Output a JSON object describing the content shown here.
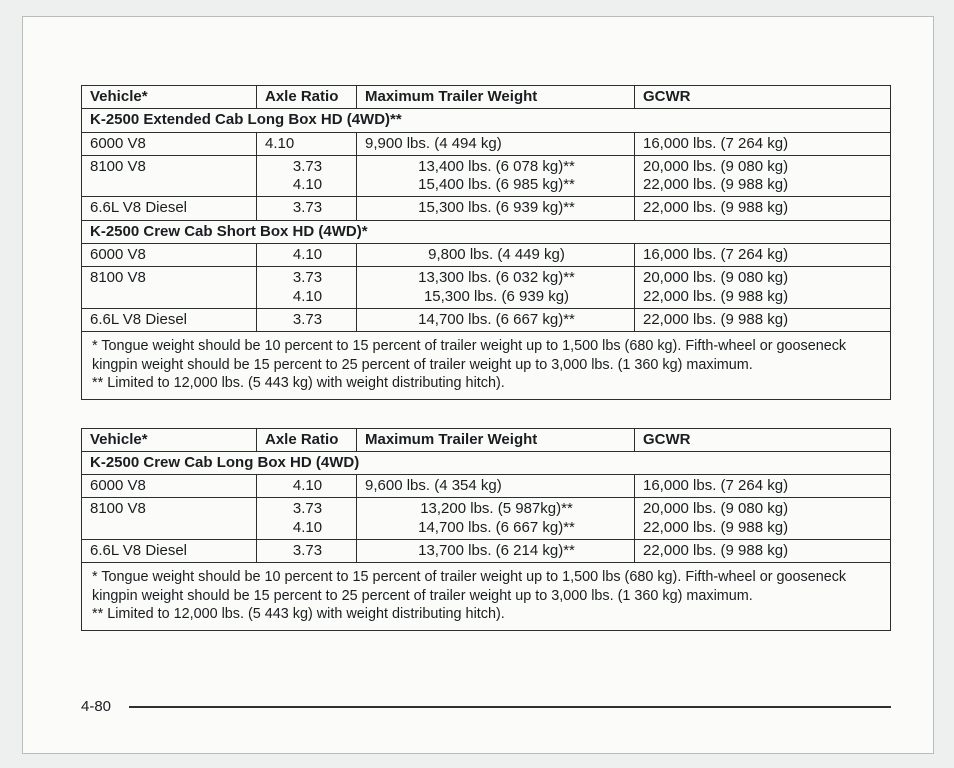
{
  "page_number": "4-80",
  "columns": [
    "Vehicle*",
    "Axle Ratio",
    "Maximum Trailer Weight",
    "GCWR"
  ],
  "footnote_a": "* Tongue weight should be 10 percent to 15 percent of trailer weight up to 1,500 lbs (680 kg). Fifth-wheel or gooseneck kingpin weight should be 15 percent to 25 percent of trailer weight up to 3,000 lbs. (1 360 kg) maximum.",
  "footnote_b": "** Limited to 12,000 lbs. (5 443 kg) with weight distributing hitch).",
  "tbl1": {
    "section1": "K-2500 Extended Cab Long Box HD (4WD)**",
    "r1": {
      "v": "6000 V8",
      "ar": "4.10",
      "mt": "9,900 lbs. (4 494 kg)",
      "g": "16,000 lbs. (7 264 kg)"
    },
    "r2": {
      "v": "8100 V8",
      "ar": "3.73\n4.10",
      "mt": "13,400 lbs. (6 078 kg)**\n15,400 lbs. (6 985 kg)**",
      "g": "20,000 lbs. (9 080 kg)\n22,000 lbs. (9 988 kg)"
    },
    "r3": {
      "v": "6.6L V8 Diesel",
      "ar": "3.73",
      "mt": "15,300 lbs. (6 939 kg)**",
      "g": "22,000 lbs. (9 988 kg)"
    },
    "section2": "K-2500 Crew Cab Short Box HD (4WD)*",
    "r4": {
      "v": "6000 V8",
      "ar": "4.10",
      "mt": "9,800 lbs. (4 449 kg)",
      "g": "16,000 lbs. (7 264 kg)"
    },
    "r5": {
      "v": "8100 V8",
      "ar": "3.73\n4.10",
      "mt": "13,300 lbs. (6 032 kg)**\n15,300 lbs. (6 939 kg)",
      "g": "20,000 lbs. (9 080 kg)\n22,000 lbs. (9 988 kg)"
    },
    "r6": {
      "v": "6.6L V8 Diesel",
      "ar": "3.73",
      "mt": "14,700 lbs. (6 667 kg)**",
      "g": "22,000 lbs. (9 988 kg)"
    }
  },
  "tbl2": {
    "section1": "K-2500 Crew Cab Long Box HD (4WD)",
    "r1": {
      "v": "6000 V8",
      "ar": "4.10",
      "mt": "9,600 lbs. (4 354 kg)",
      "g": "16,000 lbs. (7 264 kg)"
    },
    "r2": {
      "v": "8100 V8",
      "ar": "3.73\n4.10",
      "mt": "13,200 lbs. (5 987kg)**\n14,700 lbs. (6 667 kg)**",
      "g": "20,000 lbs. (9 080 kg)\n22,000 lbs. (9 988 kg)"
    },
    "r3": {
      "v": "6.6L V8 Diesel",
      "ar": "3.73",
      "mt": "13,700 lbs. (6 214 kg)**",
      "g": "22,000 lbs. (9 988 kg)"
    }
  }
}
